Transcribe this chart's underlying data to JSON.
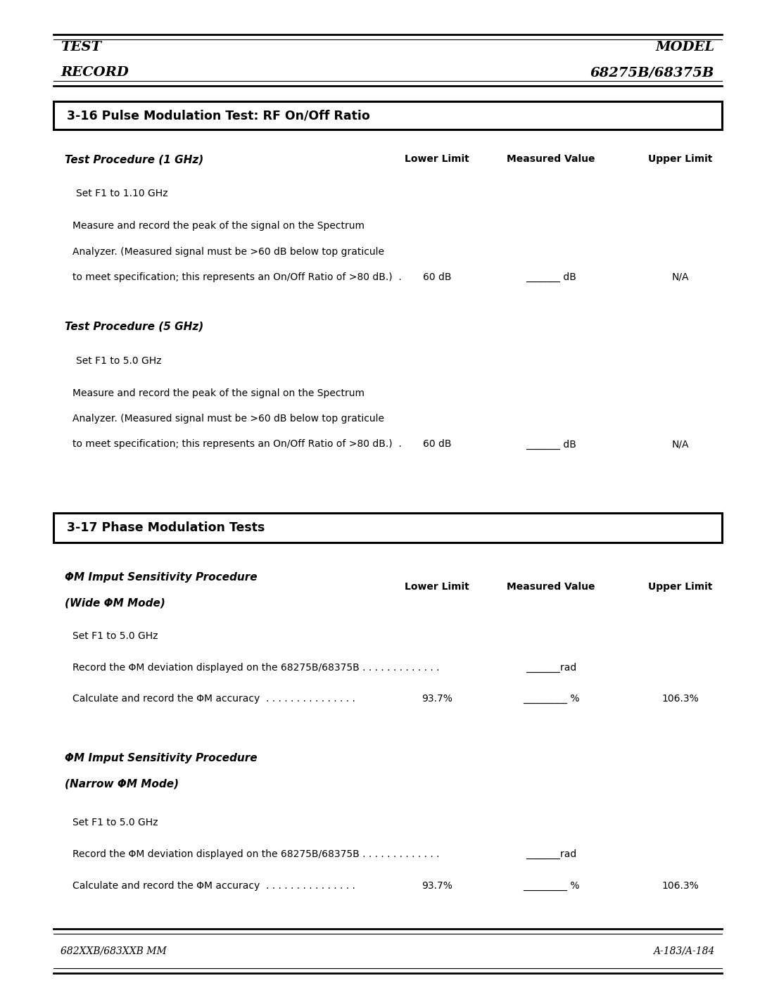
{
  "page_width": 10.8,
  "page_height": 13.97,
  "bg_color": "#ffffff",
  "header_left_line1": "TEST",
  "header_left_line2": "RECORD",
  "header_right_line1": "MODEL",
  "header_right_line2": "68275B/68375B",
  "footer_left": "682XXB/683XXB MM",
  "footer_right": "A-183/A-184",
  "section1_title": "3-16 Pulse Modulation Test: RF On/Off Ratio",
  "section1_sub1_title": "Test Procedure (1 GHz)",
  "col_lower": "Lower Limit",
  "col_measured": "Measured Value",
  "col_upper": "Upper Limit",
  "s1_step1": "Set F1 to 1.10 GHz",
  "s1_step2_line1": "Measure and record the peak of the signal on the Spectrum",
  "s1_step2_line2": "Analyzer. (Measured signal must be >60 dB below top graticule",
  "s1_step2_line3": "to meet specification; this represents an On/Off Ratio of >80 dB.)  .",
  "s1_lower1": "60 dB",
  "s1_measured1": "_______ dB",
  "s1_upper1": "N/A",
  "section1_sub2_title": "Test Procedure (5 GHz)",
  "s2_step1": "Set F1 to 5.0 GHz",
  "s2_step2_line1": "Measure and record the peak of the signal on the Spectrum",
  "s2_step2_line2": "Analyzer. (Measured signal must be >60 dB below top graticule",
  "s2_step2_line3": "to meet specification; this represents an On/Off Ratio of >80 dB.)  .",
  "s2_lower1": "60 dB",
  "s2_measured1": "_______ dB",
  "s2_upper1": "N/A",
  "section2_title": "3-17 Phase Modulation Tests",
  "section2_sub1_title_line1": "ΦM Imput Sensitivity Procedure",
  "section2_sub1_title_line2": "(Wide ΦM Mode)",
  "s3_step1": "Set F1 to 5.0 GHz",
  "s3_step2": "Record the ΦM deviation displayed on the 68275B/68375B . . . . . . . . . . . . .",
  "s3_measured2": "_______rad",
  "s3_step3": "Calculate and record the ΦM accuracy  . . . . . . . . . . . . . . .",
  "s3_lower3": "93.7%",
  "s3_measured3": "_________ %",
  "s3_upper3": "106.3%",
  "section2_sub2_title_line1": "ΦM Imput Sensitivity Procedure",
  "section2_sub2_title_line2": "(Narrow ΦM Mode)",
  "s4_step1": "Set F1 to 5.0 GHz",
  "s4_step2": "Record the ΦM deviation displayed on the 68275B/68375B . . . . . . . . . . . . .",
  "s4_measured2": "_______rad",
  "s4_step3": "Calculate and record the ΦM accuracy  . . . . . . . . . . . . . . .",
  "s4_lower3": "93.7%",
  "s4_measured3": "_________ %",
  "s4_upper3": "106.3%"
}
